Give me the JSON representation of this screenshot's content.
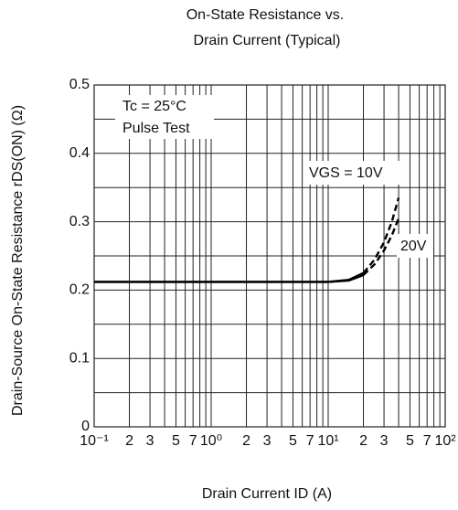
{
  "chart_data": {
    "type": "line",
    "title": [
      "On-State Resistance vs.",
      "Drain Current  (Typical)"
    ],
    "x_label": "Drain Current  ID  (A)",
    "y_label": "Drain-Source On-State Resistance  rDS(ON)  (Ω)",
    "annotations": [
      "Tc = 25°C",
      "Pulse Test"
    ],
    "x": [
      0.1,
      1,
      10,
      15,
      20,
      25,
      30,
      35,
      40
    ],
    "series": [
      {
        "name": "VGS = 10V",
        "color": "#000000",
        "values": [
          0.212,
          0.212,
          0.212,
          0.215,
          0.225,
          0.245,
          0.27,
          0.3,
          0.335
        ]
      },
      {
        "name": "20V",
        "color": "#000000",
        "values": [
          0.212,
          0.212,
          0.212,
          0.214,
          0.222,
          0.238,
          0.258,
          0.28,
          0.305
        ]
      }
    ],
    "dash_from": 20,
    "x_log": true,
    "xlim": [
      0.1,
      100
    ],
    "xticks": [
      {
        "value": 0.1,
        "label": "10⁻¹"
      },
      {
        "value": 0.2,
        "label": "2"
      },
      {
        "value": 0.3,
        "label": "3"
      },
      {
        "value": 0.5,
        "label": "5"
      },
      {
        "value": 0.7,
        "label": "7"
      },
      {
        "value": 1,
        "label": "10⁰"
      },
      {
        "value": 2,
        "label": "2"
      },
      {
        "value": 3,
        "label": "3"
      },
      {
        "value": 5,
        "label": "5"
      },
      {
        "value": 7,
        "label": "7"
      },
      {
        "value": 10,
        "label": "10¹"
      },
      {
        "value": 20,
        "label": "2"
      },
      {
        "value": 30,
        "label": "3"
      },
      {
        "value": 50,
        "label": "5"
      },
      {
        "value": 70,
        "label": "7"
      },
      {
        "value": 100,
        "label": "10²"
      }
    ],
    "xminor_ticks": [
      0.4,
      0.6,
      0.8,
      0.9,
      4,
      6,
      8,
      9,
      40,
      60,
      80,
      90
    ],
    "ylim": [
      0,
      0.5
    ],
    "yticks": [
      0,
      0.1,
      0.2,
      0.3,
      0.4,
      0.5
    ],
    "yminor_ticks": [
      0.05,
      0.15,
      0.25,
      0.35,
      0.45
    ],
    "grid": true
  }
}
